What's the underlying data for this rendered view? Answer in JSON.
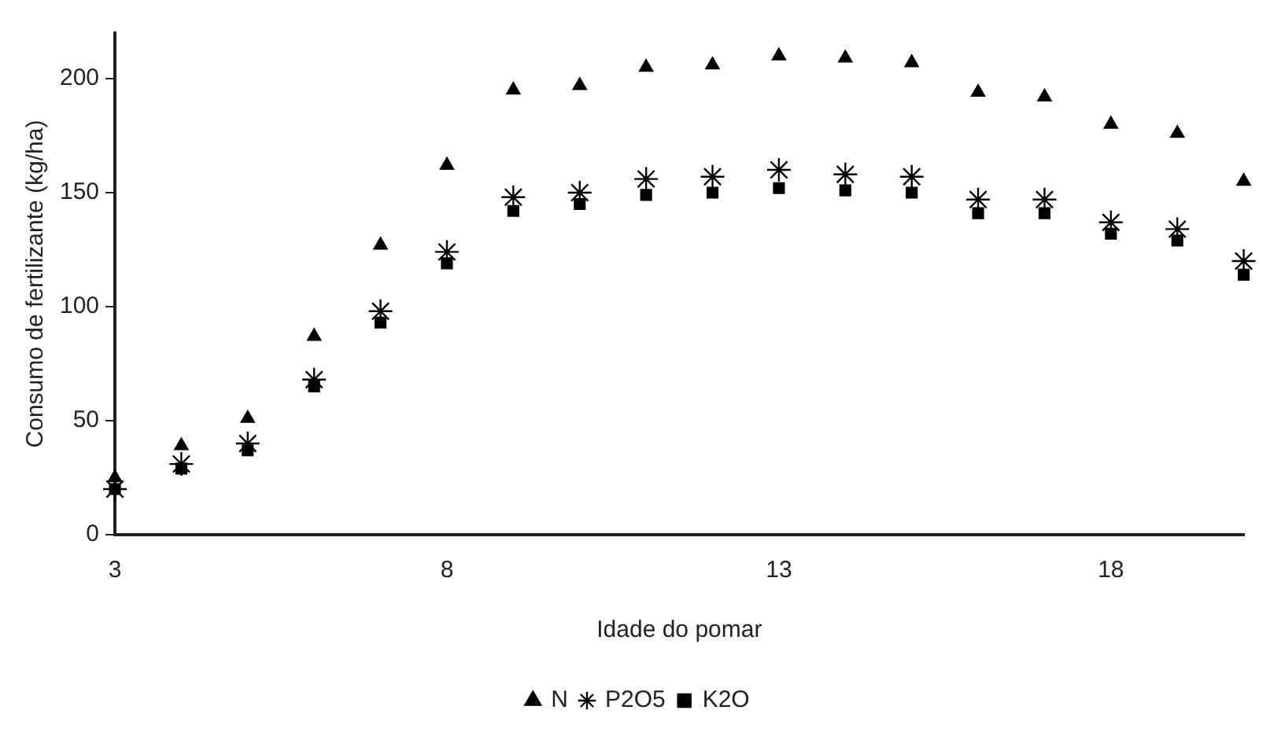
{
  "chart_data": {
    "type": "scatter",
    "xlabel": "Idade do pomar",
    "ylabel": "Consumo de fertilizante (kg/ha)",
    "x": [
      3,
      4,
      5,
      6,
      7,
      8,
      9,
      10,
      11,
      12,
      13,
      14,
      15,
      16,
      17,
      18,
      19,
      20
    ],
    "series": [
      {
        "name": "N",
        "color": "#000000",
        "marker": "triangle",
        "values": [
          25,
          39,
          51,
          87,
          127,
          162,
          195,
          197,
          205,
          206,
          210,
          209,
          207,
          194,
          192,
          180,
          176,
          155
        ]
      },
      {
        "name": "P2O5",
        "color": "#000000",
        "marker": "cross",
        "values": [
          20,
          31,
          40,
          68,
          98,
          124,
          148,
          150,
          156,
          157,
          160,
          158,
          157,
          147,
          147,
          137,
          134,
          120
        ]
      },
      {
        "name": "K2O",
        "color": "#000000",
        "marker": "square",
        "values": [
          20,
          29,
          37,
          65,
          93,
          119,
          142,
          145,
          149,
          150,
          152,
          151,
          150,
          141,
          141,
          132,
          129,
          114
        ]
      }
    ],
    "xlim": [
      3,
      20
    ],
    "xticks": [
      3,
      8,
      13,
      18
    ],
    "ylim": [
      0,
      220
    ],
    "yticks": [
      0,
      50,
      100,
      150,
      200
    ],
    "grid": false,
    "legend": "bottom"
  }
}
